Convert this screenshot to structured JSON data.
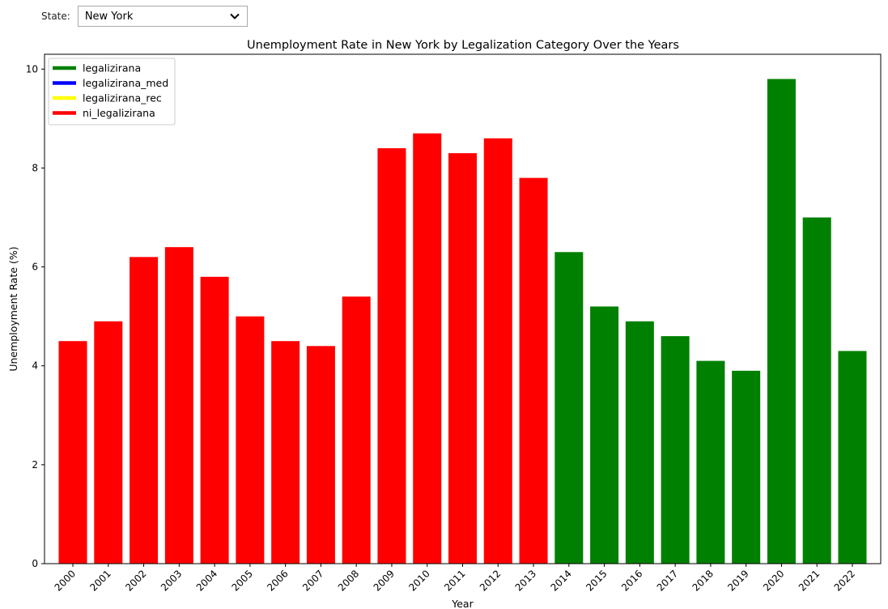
{
  "controls": {
    "state_label": "State:",
    "state_value": "New York"
  },
  "chart_data": {
    "type": "bar",
    "title": "Unemployment Rate in New York by Legalization Category Over the Years",
    "xlabel": "Year",
    "ylabel": "Unemployment Rate (%)",
    "ylim": [
      0,
      10.3
    ],
    "yticks": [
      0,
      2,
      4,
      6,
      8,
      10
    ],
    "grid": false,
    "legend_position": "top-left",
    "legend": [
      {
        "name": "legalizirana",
        "color": "#008000"
      },
      {
        "name": "legalizirana_med",
        "color": "#0000ff"
      },
      {
        "name": "legalizirana_rec",
        "color": "#ffff00"
      },
      {
        "name": "ni_legalizirana",
        "color": "#ff0000"
      }
    ],
    "categories": [
      "2000",
      "2001",
      "2002",
      "2003",
      "2004",
      "2005",
      "2006",
      "2007",
      "2008",
      "2009",
      "2010",
      "2011",
      "2012",
      "2013",
      "2014",
      "2015",
      "2016",
      "2017",
      "2018",
      "2019",
      "2020",
      "2021",
      "2022"
    ],
    "values": [
      4.5,
      4.9,
      6.2,
      6.4,
      5.8,
      5.0,
      4.5,
      4.4,
      5.4,
      8.4,
      8.7,
      8.3,
      8.6,
      7.8,
      6.3,
      5.2,
      4.9,
      4.6,
      4.1,
      3.9,
      9.8,
      7.0,
      4.3
    ],
    "bar_category": [
      "ni_legalizirana",
      "ni_legalizirana",
      "ni_legalizirana",
      "ni_legalizirana",
      "ni_legalizirana",
      "ni_legalizirana",
      "ni_legalizirana",
      "ni_legalizirana",
      "ni_legalizirana",
      "ni_legalizirana",
      "ni_legalizirana",
      "ni_legalizirana",
      "ni_legalizirana",
      "ni_legalizirana",
      "legalizirana",
      "legalizirana",
      "legalizirana",
      "legalizirana",
      "legalizirana",
      "legalizirana",
      "legalizirana",
      "legalizirana",
      "legalizirana"
    ]
  }
}
